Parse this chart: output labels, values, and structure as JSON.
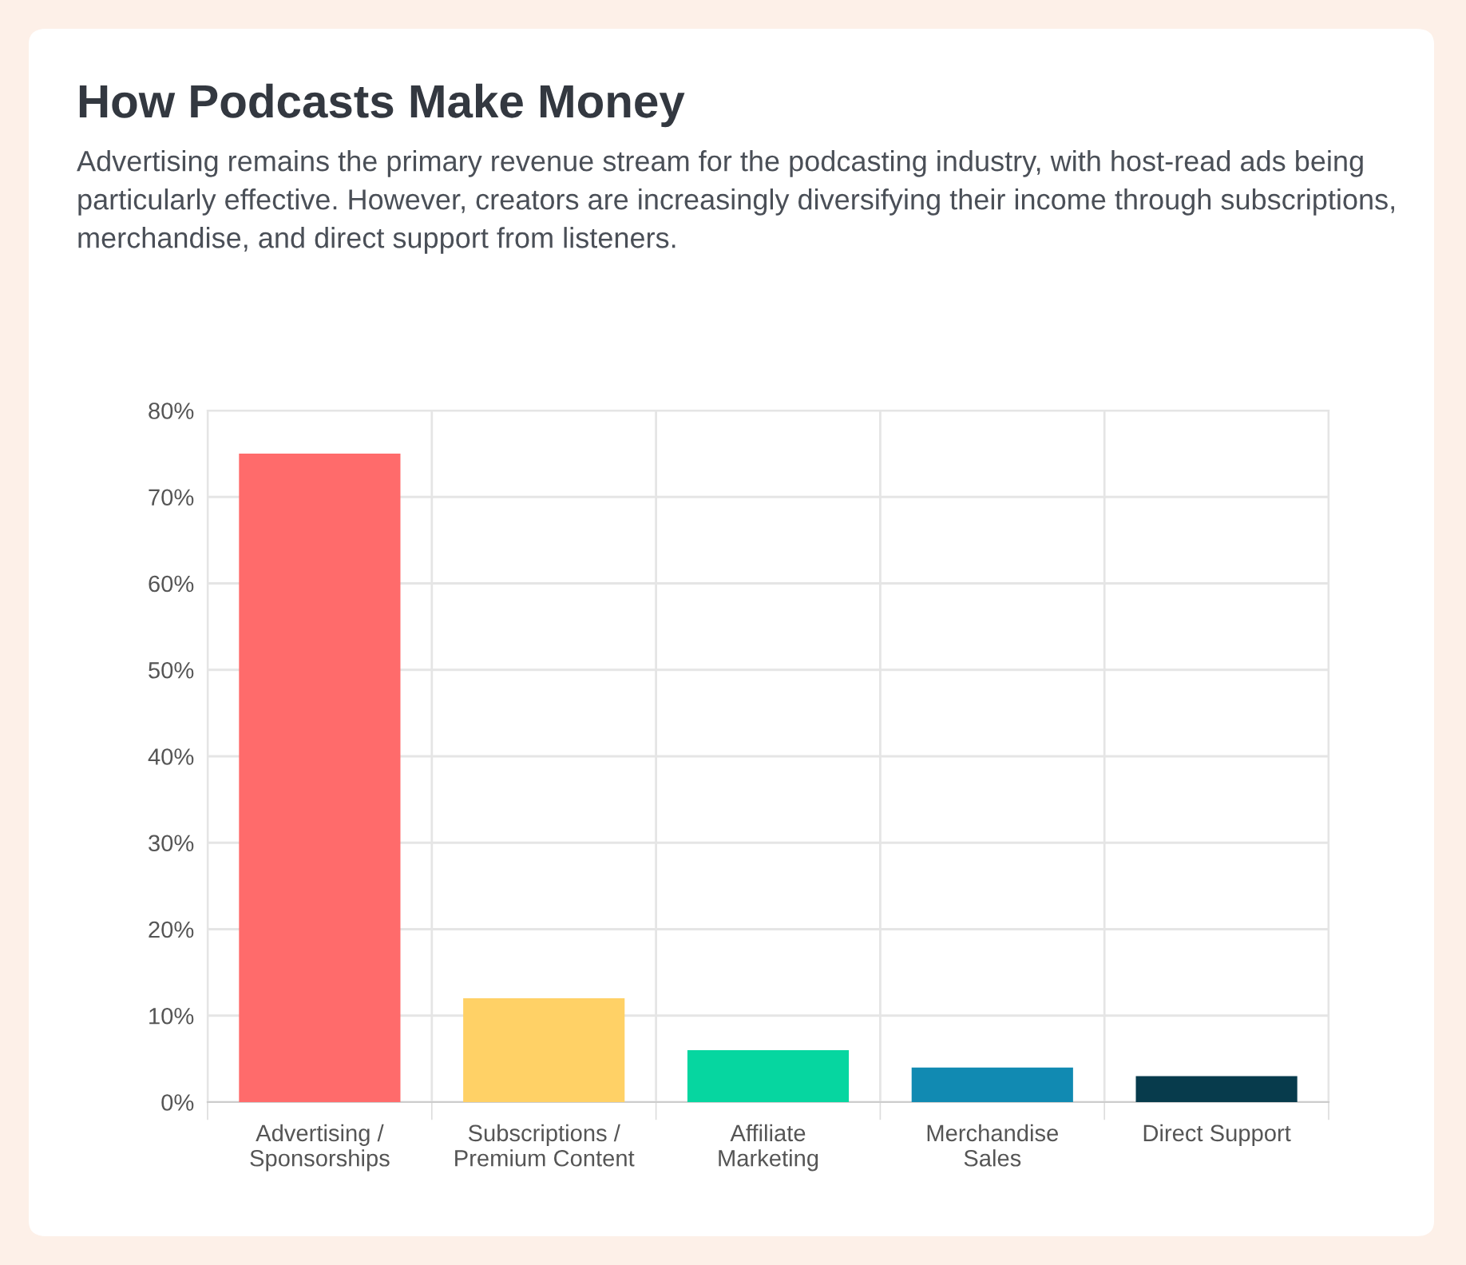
{
  "chart_data": {
    "type": "bar",
    "title": "How Podcasts Make Money",
    "subtitle": "Advertising remains the primary revenue stream for the podcasting industry, with host-read ads being particularly effective. However, creators are increasingly diversifying their income through subscriptions, merchandise, and direct support from listeners.",
    "categories": [
      "Advertising /\nSponsorships",
      "Subscriptions /\nPremium Content",
      "Affiliate\nMarketing",
      "Merchandise\nSales",
      "Direct Support"
    ],
    "values": [
      75,
      12,
      6,
      4,
      3
    ],
    "colors": [
      "#ff6b6b",
      "#ffd166",
      "#06d6a0",
      "#118ab2",
      "#073b4c"
    ],
    "ylim": [
      0,
      80
    ],
    "yticks": [
      {
        "value": 0,
        "label": "0%"
      },
      {
        "value": 10,
        "label": "10%"
      },
      {
        "value": 20,
        "label": "20%"
      },
      {
        "value": 30,
        "label": "30%"
      },
      {
        "value": 40,
        "label": "40%"
      },
      {
        "value": 50,
        "label": "50%"
      },
      {
        "value": 60,
        "label": "60%"
      },
      {
        "value": 70,
        "label": "70%"
      },
      {
        "value": 80,
        "label": "80%"
      }
    ],
    "grid": true,
    "legend": false
  }
}
